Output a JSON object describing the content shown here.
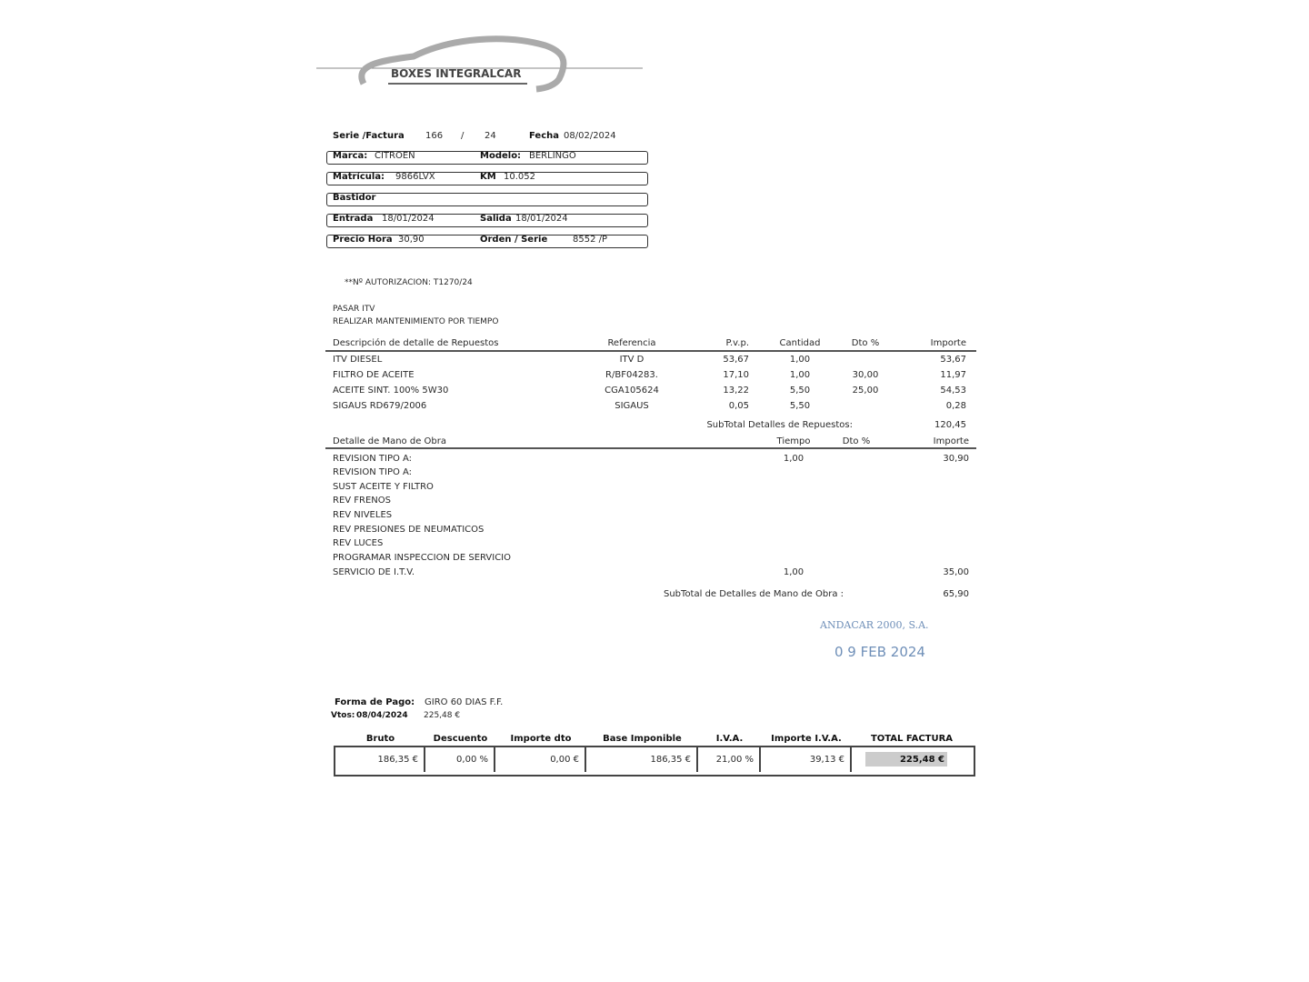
{
  "logo": {
    "text": "BOXES INTEGRALCAR"
  },
  "header": {
    "serie_label": "Serie /Factura",
    "serie": "166",
    "sep": "/",
    "year": "24",
    "fecha_label": "Fecha",
    "fecha": "08/02/2024",
    "marca_label": "Marca:",
    "marca": "CITROEN",
    "modelo_label": "Modelo:",
    "modelo": "BERLINGO",
    "matricula_label": "Matrícula:",
    "matricula": "9866LVX",
    "km_label": "KM",
    "km": "10.052",
    "bastidor_label": "Bastidor",
    "entrada_label": "Entrada",
    "entrada": "18/01/2024",
    "salida_label": "Salida",
    "salida": "18/01/2024",
    "precio_label": "Precio Hora",
    "precio": "30,90",
    "orden_label": "Orden / Serie",
    "orden": "8552 /P"
  },
  "notes": {
    "autorizacion": "**Nº AUTORIZACION: T1270/24",
    "line1": "PASAR ITV",
    "line2": "REALIZAR MANTENIMIENTO POR TIEMPO"
  },
  "parts": {
    "headers": [
      "Descripción de detalle de Repuestos",
      "Referencia",
      "P.v.p.",
      "Cantidad",
      "Dto %",
      "Importe"
    ],
    "rows": [
      [
        "ITV DIESEL",
        "ITV D",
        "53,67",
        "1,00",
        "",
        "53,67"
      ],
      [
        "FILTRO DE ACEITE",
        "R/BF04283.",
        "17,10",
        "1,00",
        "30,00",
        "11,97"
      ],
      [
        "ACEITE SINT. 100% 5W30",
        "CGA105624",
        "13,22",
        "5,50",
        "25,00",
        "54,53"
      ],
      [
        "SIGAUS RD679/2006",
        "SIGAUS",
        "0,05",
        "5,50",
        "",
        "0,28"
      ]
    ],
    "subtotal_label": "SubTotal Detalles de Repuestos:",
    "subtotal": "120,45"
  },
  "labor": {
    "headers": [
      "Detalle de Mano de Obra",
      "Tiempo",
      "Dto %",
      "Importe"
    ],
    "rows": [
      [
        "REVISION TIPO A:",
        "1,00",
        "",
        "30,90"
      ],
      [
        "REVISION TIPO A:",
        "",
        "",
        ""
      ],
      [
        "SUST ACEITE Y FILTRO",
        "",
        "",
        ""
      ],
      [
        "REV FRENOS",
        "",
        "",
        ""
      ],
      [
        "REV NIVELES",
        "",
        "",
        ""
      ],
      [
        "REV PRESIONES DE NEUMATICOS",
        "",
        "",
        ""
      ],
      [
        "REV LUCES",
        "",
        "",
        ""
      ],
      [
        "PROGRAMAR INSPECCION DE SERVICIO",
        "",
        "",
        ""
      ],
      [
        "SERVICIO DE I.T.V.",
        "1,00",
        "",
        "35,00"
      ]
    ],
    "subtotal_label": "SubTotal de Detalles de Mano de Obra :",
    "subtotal": "65,90"
  },
  "stamp": {
    "company": "ANDACAR 2000, S.A.",
    "date": "0 9 FEB 2024",
    "color": "#6f8fb8"
  },
  "payment": {
    "forma_label": "Forma de Pago:",
    "forma": "GIRO 60 DIAS F.F.",
    "vtos_label": "Vtos:",
    "vtos_date": "08/04/2024",
    "vtos_amount": "225,48 €"
  },
  "totals": {
    "headers": [
      "Bruto",
      "Descuento",
      "Importe dto",
      "Base Imponible",
      "I.V.A.",
      "Importe I.V.A.",
      "TOTAL FACTURA"
    ],
    "values": [
      "186,35 €",
      "0,00  %",
      "0,00 €",
      "186,35  €",
      "21,00 %",
      "39,13  €",
      "225,48 €"
    ]
  }
}
